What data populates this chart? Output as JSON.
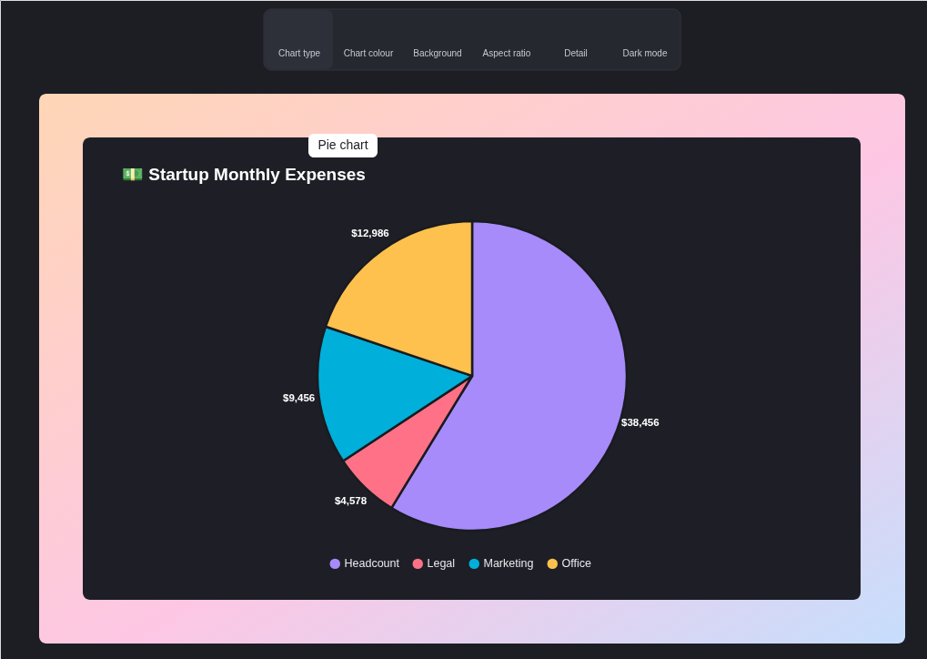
{
  "chart_data": {
    "type": "pie",
    "title": "💵 Startup Monthly Expenses",
    "categories": [
      "Headcount",
      "Legal",
      "Marketing",
      "Office"
    ],
    "values": [
      38456,
      4578,
      9456,
      12986
    ],
    "colors": [
      "#a78bfa",
      "#ff7186",
      "#00b0da",
      "#ffc14e"
    ],
    "value_labels": [
      "$38,456",
      "$4,578",
      "$9,456",
      "$12,986"
    ],
    "legend": "bottom",
    "annotations": [
      "Chart type",
      "Chart colour",
      "Background",
      "Aspect ratio",
      "Detail",
      "Dark mode",
      "Pie chart"
    ]
  }
}
